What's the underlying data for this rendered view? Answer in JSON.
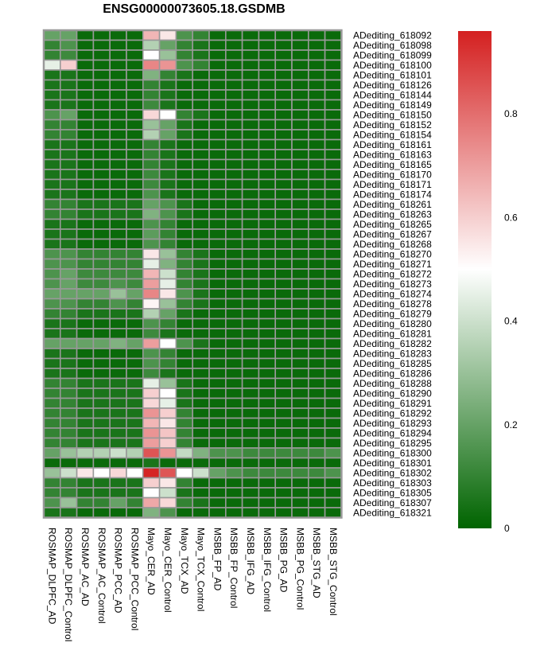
{
  "chart_data": {
    "type": "heatmap",
    "title": "ENSG00000073605.18.GSDMB",
    "columns": [
      "ROSMAP_DLPFC_AD",
      "ROSMAP_DLPFC_Control",
      "ROSMAP_AC_AD",
      "ROSMAP_AC_Control",
      "ROSMAP_PCC_AD",
      "ROSMAP_PCC_Control",
      "Mayo_CER_AD",
      "Mayo_CER_Control",
      "Mayo_TCX_AD",
      "Mayo_TCX_Control",
      "MSBB_FP_AD",
      "MSBB_FP_Control",
      "MSBB_IFG_AD",
      "MSBB_IFG_Control",
      "MSBB_PG_AD",
      "MSBB_PG_Control",
      "MSBB_STG_AD",
      "MSBB_STG_Control"
    ],
    "rows": [
      "ADediting_618092",
      "ADediting_618098",
      "ADediting_618099",
      "ADediting_618100",
      "ADediting_618101",
      "ADediting_618126",
      "ADediting_618144",
      "ADediting_618149",
      "ADediting_618150",
      "ADediting_618152",
      "ADediting_618154",
      "ADediting_618161",
      "ADediting_618163",
      "ADediting_618165",
      "ADediting_618170",
      "ADediting_618171",
      "ADediting_618174",
      "ADediting_618261",
      "ADediting_618263",
      "ADediting_618265",
      "ADediting_618267",
      "ADediting_618268",
      "ADediting_618270",
      "ADediting_618271",
      "ADediting_618272",
      "ADediting_618273",
      "ADediting_618274",
      "ADediting_618278",
      "ADediting_618279",
      "ADediting_618280",
      "ADediting_618281",
      "ADediting_618282",
      "ADediting_618283",
      "ADediting_618285",
      "ADediting_618286",
      "ADediting_618288",
      "ADediting_618290",
      "ADediting_618291",
      "ADediting_618292",
      "ADediting_618293",
      "ADediting_618294",
      "ADediting_618295",
      "ADediting_618300",
      "ADediting_618301",
      "ADediting_618302",
      "ADediting_618303",
      "ADediting_618305",
      "ADediting_618307",
      "ADediting_618321"
    ],
    "values": [
      [
        0.2,
        0.2,
        0.02,
        0.02,
        0.02,
        0.02,
        0.65,
        0.55,
        0.15,
        0.1,
        0.02,
        0.02,
        0.02,
        0.02,
        0.02,
        0.02,
        0.02,
        0.02
      ],
      [
        0.1,
        0.15,
        0.02,
        0.02,
        0.02,
        0.02,
        0.35,
        0.2,
        0.1,
        0.05,
        0.02,
        0.02,
        0.02,
        0.02,
        0.02,
        0.02,
        0.02,
        0.02
      ],
      [
        0.1,
        0.12,
        0.02,
        0.02,
        0.02,
        0.02,
        0.5,
        0.3,
        0.1,
        0.05,
        0.02,
        0.02,
        0.02,
        0.02,
        0.02,
        0.02,
        0.02,
        0.02
      ],
      [
        0.45,
        0.6,
        0.02,
        0.02,
        0.02,
        0.02,
        0.75,
        0.72,
        0.15,
        0.1,
        0.02,
        0.02,
        0.02,
        0.02,
        0.02,
        0.02,
        0.02,
        0.02
      ],
      [
        0.05,
        0.05,
        0.02,
        0.02,
        0.02,
        0.02,
        0.25,
        0.1,
        0.05,
        0.02,
        0.02,
        0.02,
        0.02,
        0.02,
        0.02,
        0.02,
        0.02,
        0.02
      ],
      [
        0.05,
        0.05,
        0.02,
        0.02,
        0.02,
        0.02,
        0.1,
        0.05,
        0.02,
        0.02,
        0.02,
        0.02,
        0.02,
        0.02,
        0.02,
        0.02,
        0.02,
        0.02
      ],
      [
        0.05,
        0.05,
        0.02,
        0.02,
        0.02,
        0.02,
        0.1,
        0.05,
        0.02,
        0.02,
        0.02,
        0.02,
        0.02,
        0.02,
        0.02,
        0.02,
        0.02,
        0.02
      ],
      [
        0.05,
        0.05,
        0.02,
        0.02,
        0.02,
        0.02,
        0.12,
        0.05,
        0.02,
        0.02,
        0.02,
        0.02,
        0.02,
        0.02,
        0.02,
        0.02,
        0.02,
        0.02
      ],
      [
        0.15,
        0.2,
        0.02,
        0.02,
        0.02,
        0.02,
        0.58,
        0.5,
        0.1,
        0.05,
        0.02,
        0.02,
        0.02,
        0.02,
        0.02,
        0.02,
        0.02,
        0.02
      ],
      [
        0.1,
        0.1,
        0.02,
        0.02,
        0.02,
        0.02,
        0.3,
        0.2,
        0.05,
        0.02,
        0.02,
        0.02,
        0.02,
        0.02,
        0.02,
        0.02,
        0.02,
        0.02
      ],
      [
        0.1,
        0.1,
        0.02,
        0.02,
        0.02,
        0.02,
        0.35,
        0.2,
        0.05,
        0.02,
        0.02,
        0.02,
        0.02,
        0.02,
        0.02,
        0.02,
        0.02,
        0.02
      ],
      [
        0.05,
        0.05,
        0.02,
        0.02,
        0.02,
        0.02,
        0.1,
        0.05,
        0.02,
        0.02,
        0.02,
        0.02,
        0.02,
        0.02,
        0.02,
        0.02,
        0.02,
        0.02
      ],
      [
        0.05,
        0.05,
        0.02,
        0.02,
        0.02,
        0.02,
        0.1,
        0.05,
        0.02,
        0.02,
        0.02,
        0.02,
        0.02,
        0.02,
        0.02,
        0.02,
        0.02,
        0.02
      ],
      [
        0.05,
        0.05,
        0.02,
        0.02,
        0.02,
        0.02,
        0.1,
        0.05,
        0.02,
        0.02,
        0.02,
        0.02,
        0.02,
        0.02,
        0.02,
        0.02,
        0.02,
        0.02
      ],
      [
        0.05,
        0.05,
        0.02,
        0.02,
        0.02,
        0.02,
        0.12,
        0.05,
        0.02,
        0.02,
        0.02,
        0.02,
        0.02,
        0.02,
        0.02,
        0.02,
        0.02,
        0.02
      ],
      [
        0.05,
        0.05,
        0.02,
        0.02,
        0.02,
        0.02,
        0.12,
        0.05,
        0.02,
        0.02,
        0.02,
        0.02,
        0.02,
        0.02,
        0.02,
        0.02,
        0.02,
        0.02
      ],
      [
        0.05,
        0.05,
        0.02,
        0.02,
        0.02,
        0.02,
        0.15,
        0.05,
        0.02,
        0.02,
        0.02,
        0.02,
        0.02,
        0.02,
        0.02,
        0.02,
        0.02,
        0.02
      ],
      [
        0.1,
        0.1,
        0.05,
        0.05,
        0.05,
        0.05,
        0.2,
        0.15,
        0.05,
        0.02,
        0.02,
        0.02,
        0.02,
        0.02,
        0.02,
        0.02,
        0.02,
        0.02
      ],
      [
        0.1,
        0.1,
        0.05,
        0.05,
        0.05,
        0.05,
        0.25,
        0.15,
        0.05,
        0.02,
        0.02,
        0.02,
        0.02,
        0.02,
        0.02,
        0.02,
        0.02,
        0.02
      ],
      [
        0.05,
        0.05,
        0.02,
        0.02,
        0.02,
        0.02,
        0.15,
        0.1,
        0.02,
        0.02,
        0.02,
        0.02,
        0.02,
        0.02,
        0.02,
        0.02,
        0.02,
        0.02
      ],
      [
        0.05,
        0.05,
        0.02,
        0.02,
        0.02,
        0.02,
        0.18,
        0.1,
        0.02,
        0.02,
        0.02,
        0.02,
        0.02,
        0.02,
        0.02,
        0.02,
        0.02,
        0.02
      ],
      [
        0.05,
        0.05,
        0.02,
        0.02,
        0.02,
        0.02,
        0.15,
        0.1,
        0.02,
        0.02,
        0.02,
        0.02,
        0.02,
        0.02,
        0.02,
        0.02,
        0.02,
        0.02
      ],
      [
        0.15,
        0.15,
        0.1,
        0.1,
        0.1,
        0.1,
        0.55,
        0.3,
        0.1,
        0.05,
        0.02,
        0.02,
        0.02,
        0.02,
        0.02,
        0.02,
        0.02,
        0.02
      ],
      [
        0.15,
        0.15,
        0.1,
        0.1,
        0.1,
        0.1,
        0.45,
        0.25,
        0.1,
        0.05,
        0.02,
        0.02,
        0.02,
        0.02,
        0.02,
        0.02,
        0.02,
        0.02
      ],
      [
        0.15,
        0.2,
        0.12,
        0.12,
        0.12,
        0.12,
        0.65,
        0.4,
        0.1,
        0.05,
        0.02,
        0.02,
        0.02,
        0.02,
        0.02,
        0.02,
        0.02,
        0.02
      ],
      [
        0.15,
        0.2,
        0.12,
        0.12,
        0.15,
        0.12,
        0.7,
        0.45,
        0.1,
        0.05,
        0.02,
        0.02,
        0.02,
        0.02,
        0.02,
        0.02,
        0.02,
        0.02
      ],
      [
        0.2,
        0.2,
        0.2,
        0.2,
        0.3,
        0.2,
        0.75,
        0.55,
        0.15,
        0.05,
        0.02,
        0.02,
        0.02,
        0.02,
        0.02,
        0.02,
        0.02,
        0.02
      ],
      [
        0.15,
        0.15,
        0.1,
        0.1,
        0.15,
        0.1,
        0.52,
        0.3,
        0.1,
        0.05,
        0.02,
        0.02,
        0.02,
        0.02,
        0.02,
        0.02,
        0.02,
        0.02
      ],
      [
        0.1,
        0.1,
        0.05,
        0.05,
        0.05,
        0.05,
        0.35,
        0.2,
        0.05,
        0.02,
        0.02,
        0.02,
        0.02,
        0.02,
        0.02,
        0.02,
        0.02,
        0.02
      ],
      [
        0.05,
        0.05,
        0.02,
        0.02,
        0.02,
        0.02,
        0.15,
        0.1,
        0.02,
        0.02,
        0.02,
        0.02,
        0.02,
        0.02,
        0.02,
        0.02,
        0.02,
        0.02
      ],
      [
        0.05,
        0.05,
        0.02,
        0.02,
        0.02,
        0.02,
        0.12,
        0.05,
        0.02,
        0.02,
        0.02,
        0.02,
        0.02,
        0.02,
        0.02,
        0.02,
        0.02,
        0.02
      ],
      [
        0.2,
        0.2,
        0.2,
        0.2,
        0.25,
        0.2,
        0.7,
        0.5,
        0.15,
        0.05,
        0.02,
        0.02,
        0.02,
        0.02,
        0.02,
        0.02,
        0.02,
        0.02
      ],
      [
        0.05,
        0.05,
        0.02,
        0.02,
        0.02,
        0.02,
        0.15,
        0.1,
        0.02,
        0.02,
        0.02,
        0.02,
        0.02,
        0.02,
        0.02,
        0.02,
        0.02,
        0.02
      ],
      [
        0.05,
        0.05,
        0.02,
        0.02,
        0.02,
        0.02,
        0.15,
        0.1,
        0.02,
        0.02,
        0.02,
        0.02,
        0.02,
        0.02,
        0.02,
        0.02,
        0.02,
        0.02
      ],
      [
        0.05,
        0.05,
        0.02,
        0.02,
        0.02,
        0.02,
        0.12,
        0.05,
        0.02,
        0.02,
        0.02,
        0.02,
        0.02,
        0.02,
        0.02,
        0.02,
        0.02,
        0.02
      ],
      [
        0.1,
        0.1,
        0.05,
        0.05,
        0.05,
        0.05,
        0.45,
        0.3,
        0.05,
        0.02,
        0.02,
        0.02,
        0.02,
        0.02,
        0.02,
        0.02,
        0.02,
        0.02
      ],
      [
        0.1,
        0.1,
        0.05,
        0.05,
        0.05,
        0.05,
        0.6,
        0.5,
        0.05,
        0.02,
        0.02,
        0.02,
        0.02,
        0.02,
        0.02,
        0.02,
        0.02,
        0.02
      ],
      [
        0.1,
        0.1,
        0.05,
        0.05,
        0.05,
        0.05,
        0.58,
        0.45,
        0.05,
        0.02,
        0.02,
        0.02,
        0.02,
        0.02,
        0.02,
        0.02,
        0.02,
        0.02
      ],
      [
        0.1,
        0.1,
        0.05,
        0.05,
        0.05,
        0.05,
        0.72,
        0.6,
        0.1,
        0.02,
        0.02,
        0.02,
        0.02,
        0.02,
        0.02,
        0.02,
        0.02,
        0.02
      ],
      [
        0.1,
        0.1,
        0.05,
        0.05,
        0.05,
        0.05,
        0.65,
        0.55,
        0.1,
        0.02,
        0.02,
        0.02,
        0.02,
        0.02,
        0.02,
        0.02,
        0.02,
        0.02
      ],
      [
        0.1,
        0.1,
        0.05,
        0.05,
        0.05,
        0.05,
        0.72,
        0.62,
        0.1,
        0.02,
        0.02,
        0.02,
        0.02,
        0.02,
        0.02,
        0.02,
        0.02,
        0.02
      ],
      [
        0.1,
        0.1,
        0.05,
        0.05,
        0.05,
        0.05,
        0.7,
        0.6,
        0.1,
        0.02,
        0.02,
        0.02,
        0.02,
        0.02,
        0.02,
        0.02,
        0.02,
        0.02
      ],
      [
        0.2,
        0.3,
        0.35,
        0.35,
        0.4,
        0.35,
        0.85,
        0.72,
        0.38,
        0.25,
        0.15,
        0.15,
        0.12,
        0.12,
        0.12,
        0.12,
        0.12,
        0.15
      ],
      [
        0.02,
        0.02,
        0.02,
        0.02,
        0.02,
        0.02,
        0.05,
        0.02,
        0.02,
        0.02,
        0.02,
        0.02,
        0.02,
        0.02,
        0.02,
        0.02,
        0.02,
        0.02
      ],
      [
        0.3,
        0.4,
        0.55,
        0.5,
        0.58,
        0.5,
        0.95,
        0.85,
        0.5,
        0.4,
        0.2,
        0.15,
        0.12,
        0.12,
        0.12,
        0.12,
        0.12,
        0.15
      ],
      [
        0.1,
        0.1,
        0.05,
        0.05,
        0.05,
        0.05,
        0.6,
        0.55,
        0.1,
        0.02,
        0.02,
        0.02,
        0.02,
        0.02,
        0.02,
        0.02,
        0.02,
        0.02
      ],
      [
        0.1,
        0.1,
        0.05,
        0.05,
        0.05,
        0.05,
        0.5,
        0.4,
        0.05,
        0.02,
        0.02,
        0.02,
        0.02,
        0.02,
        0.02,
        0.02,
        0.02,
        0.02
      ],
      [
        0.15,
        0.3,
        0.1,
        0.1,
        0.2,
        0.1,
        0.68,
        0.58,
        0.1,
        0.05,
        0.02,
        0.02,
        0.02,
        0.02,
        0.02,
        0.02,
        0.02,
        0.02
      ],
      [
        0.05,
        0.05,
        0.02,
        0.02,
        0.02,
        0.02,
        0.25,
        0.15,
        0.02,
        0.02,
        0.02,
        0.02,
        0.02,
        0.02,
        0.02,
        0.02,
        0.02,
        0.02
      ]
    ],
    "colorbar": {
      "ticks": [
        0,
        0.2,
        0.4,
        0.6,
        0.8
      ],
      "tick_labels": [
        "0",
        "0.2",
        "0.4",
        "0.6",
        "0.8"
      ],
      "range": [
        0,
        0.96
      ],
      "colors": {
        "low": "#006400",
        "mid": "#ffffff",
        "high": "#d42020"
      }
    },
    "border_color": "#999999"
  }
}
